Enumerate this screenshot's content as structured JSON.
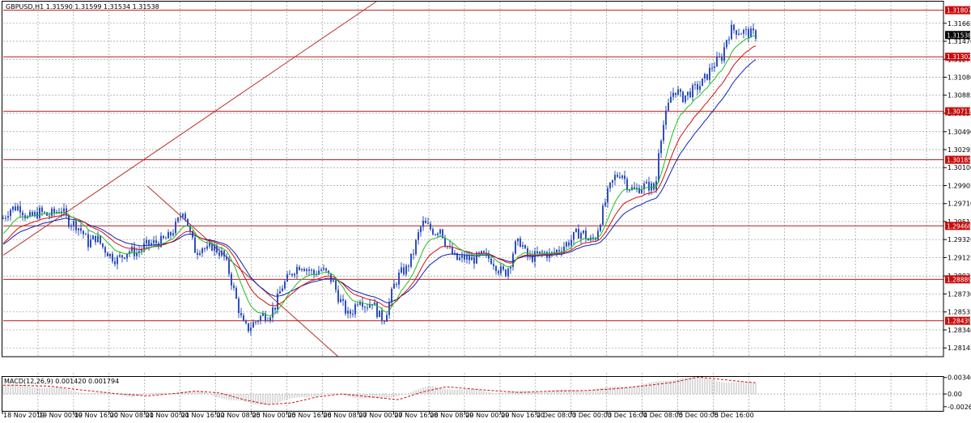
{
  "chart_data": {
    "type": "candlestick",
    "main": {
      "title": "GBPUSD,H1  1.31590 1.31599 1.31534 1.31538",
      "ylim": [
        1.2805,
        1.319
      ],
      "y_ticks": [
        "1.31665",
        "1.31470",
        "1.31275",
        "1.31080",
        "1.30885",
        "1.30690",
        "1.30490",
        "1.30295",
        "1.30100",
        "1.29905",
        "1.29710",
        "1.29515",
        "1.29320",
        "1.29125",
        "1.28925",
        "1.28730",
        "1.28535",
        "1.28340",
        "1.28145"
      ],
      "current_price": "1.31538",
      "levels": [
        {
          "value": 1.31807,
          "label": "1.31807"
        },
        {
          "value": 1.31302,
          "label": "1.31302"
        },
        {
          "value": 1.30711,
          "label": "1.30711"
        },
        {
          "value": 1.30185,
          "label": "1.30185"
        },
        {
          "value": 1.29468,
          "label": "1.29468"
        },
        {
          "value": 1.28889,
          "label": "1.28889"
        },
        {
          "value": 1.28439,
          "label": "1.28439"
        }
      ],
      "price_path": [
        [
          0,
          1.2955
        ],
        [
          8,
          1.2965
        ],
        [
          20,
          1.2968
        ],
        [
          30,
          1.2955
        ],
        [
          38,
          1.2958
        ],
        [
          45,
          1.2962
        ],
        [
          55,
          1.2958
        ],
        [
          65,
          1.2962
        ],
        [
          72,
          1.2965
        ],
        [
          80,
          1.2952
        ],
        [
          90,
          1.2948
        ],
        [
          98,
          1.294
        ],
        [
          105,
          1.2928
        ],
        [
          115,
          1.2935
        ],
        [
          122,
          1.2925
        ],
        [
          132,
          1.2915
        ],
        [
          140,
          1.291
        ],
        [
          148,
          1.2915
        ],
        [
          155,
          1.292
        ],
        [
          165,
          1.2918
        ],
        [
          175,
          1.2925
        ],
        [
          185,
          1.2928
        ],
        [
          195,
          1.293
        ],
        [
          205,
          1.2935
        ],
        [
          212,
          1.2945
        ],
        [
          218,
          1.2955
        ],
        [
          222,
          1.2965
        ],
        [
          226,
          1.2955
        ],
        [
          232,
          1.2935
        ],
        [
          238,
          1.2918
        ],
        [
          245,
          1.2925
        ],
        [
          252,
          1.292
        ],
        [
          258,
          1.2925
        ],
        [
          265,
          1.292
        ],
        [
          272,
          1.2915
        ],
        [
          278,
          1.29
        ],
        [
          284,
          1.288
        ],
        [
          290,
          1.286
        ],
        [
          296,
          1.284
        ],
        [
          302,
          1.2835
        ],
        [
          308,
          1.284
        ],
        [
          314,
          1.2845
        ],
        [
          320,
          1.285
        ],
        [
          328,
          1.285
        ],
        [
          336,
          1.286
        ],
        [
          344,
          1.288
        ],
        [
          352,
          1.289
        ],
        [
          360,
          1.29
        ],
        [
          368,
          1.2905
        ],
        [
          376,
          1.29
        ],
        [
          384,
          1.2895
        ],
        [
          392,
          1.29
        ],
        [
          400,
          1.2895
        ],
        [
          408,
          1.2885
        ],
        [
          414,
          1.287
        ],
        [
          420,
          1.286
        ],
        [
          426,
          1.285
        ],
        [
          432,
          1.2855
        ],
        [
          440,
          1.287
        ],
        [
          448,
          1.286
        ],
        [
          456,
          1.2865
        ],
        [
          464,
          1.285
        ],
        [
          470,
          1.2845
        ],
        [
          476,
          1.286
        ],
        [
          482,
          1.288
        ],
        [
          490,
          1.2895
        ],
        [
          498,
          1.29
        ],
        [
          506,
          1.2915
        ],
        [
          512,
          1.2935
        ],
        [
          518,
          1.295
        ],
        [
          526,
          1.2945
        ],
        [
          534,
          1.294
        ],
        [
          540,
          1.2945
        ],
        [
          546,
          1.293
        ],
        [
          552,
          1.292
        ],
        [
          560,
          1.291
        ],
        [
          570,
          1.2912
        ],
        [
          580,
          1.291
        ],
        [
          592,
          1.2915
        ],
        [
          604,
          1.291
        ],
        [
          612,
          1.29
        ],
        [
          620,
          1.2895
        ],
        [
          626,
          1.2905
        ],
        [
          632,
          1.2925
        ],
        [
          640,
          1.293
        ],
        [
          646,
          1.2915
        ],
        [
          652,
          1.2912
        ],
        [
          660,
          1.2915
        ],
        [
          668,
          1.2918
        ],
        [
          676,
          1.2915
        ],
        [
          684,
          1.292
        ],
        [
          692,
          1.2925
        ],
        [
          700,
          1.293
        ],
        [
          708,
          1.2938
        ],
        [
          716,
          1.294
        ],
        [
          724,
          1.293
        ],
        [
          732,
          1.2935
        ],
        [
          740,
          1.296
        ],
        [
          748,
          1.2985
        ],
        [
          756,
          1.3
        ],
        [
          764,
          1.3005
        ],
        [
          772,
          1.299
        ],
        [
          780,
          1.2985
        ],
        [
          790,
          1.299
        ],
        [
          800,
          1.299
        ],
        [
          806,
          1.2985
        ],
        [
          810,
          1.303
        ],
        [
          814,
          1.305
        ],
        [
          820,
          1.307
        ],
        [
          826,
          1.309
        ],
        [
          832,
          1.3095
        ],
        [
          838,
          1.3085
        ],
        [
          846,
          1.309
        ],
        [
          854,
          1.3095
        ],
        [
          862,
          1.31
        ],
        [
          870,
          1.311
        ],
        [
          876,
          1.312
        ],
        [
          882,
          1.3125
        ],
        [
          888,
          1.313
        ],
        [
          894,
          1.315
        ],
        [
          900,
          1.316
        ],
        [
          910,
          1.3158
        ],
        [
          920,
          1.3156
        ],
        [
          930,
          1.3154
        ]
      ]
    },
    "macd": {
      "title": "MACD(12,26,9) 0.001420 0.001794",
      "ylim": [
        -0.003,
        0.0037
      ],
      "y_ticks": [
        "0.003409",
        "0.00",
        "-0.00264"
      ],
      "path": [
        [
          0,
          0.0018
        ],
        [
          40,
          0.0016
        ],
        [
          80,
          0.0008
        ],
        [
          120,
          0.0001
        ],
        [
          160,
          -0.0004
        ],
        [
          200,
          0.0002
        ],
        [
          220,
          0.0006
        ],
        [
          250,
          0.0002
        ],
        [
          280,
          -0.0012
        ],
        [
          310,
          -0.0022
        ],
        [
          340,
          -0.0018
        ],
        [
          370,
          -0.0006
        ],
        [
          400,
          0.0
        ],
        [
          430,
          -0.0005
        ],
        [
          470,
          -0.0012
        ],
        [
          500,
          0.0004
        ],
        [
          530,
          0.0015
        ],
        [
          570,
          0.0009
        ],
        [
          620,
          0.0003
        ],
        [
          660,
          0.0006
        ],
        [
          700,
          0.0007
        ],
        [
          740,
          0.0011
        ],
        [
          780,
          0.0018
        ],
        [
          810,
          0.0024
        ],
        [
          840,
          0.0035
        ],
        [
          870,
          0.003
        ],
        [
          900,
          0.0025
        ],
        [
          930,
          0.0021
        ]
      ]
    },
    "x_labels": [
      "18 Nov 2019",
      "19 Nov 00:00",
      "19 Nov 16:00",
      "20 Nov 08:00",
      "21 Nov 00:00",
      "21 Nov 16:00",
      "22 Nov 08:00",
      "25 Nov 00:00",
      "25 Nov 16:00",
      "26 Nov 08:00",
      "27 Nov 00:00",
      "27 Nov 16:00",
      "28 Nov 08:00",
      "29 Nov 00:00",
      "29 Nov 16:00",
      "2 Dec 08:00",
      "3 Dec 00:00",
      "3 Dec 16:00",
      "4 Dec 08:00",
      "5 Dec 00:00",
      "5 Dec 16:00"
    ],
    "colors": {
      "candle": "#2d4fbd",
      "ma_fast": "#1fbf1f",
      "ma_mid": "#d01010",
      "ma_slow": "#1020b0",
      "level_line": "#c01818",
      "level_box": "#c80c0c",
      "trendline": "#b83030",
      "grid": "#9a9a9a",
      "macd_hist": "#b8b8b8",
      "macd_signal": "#d01010"
    }
  }
}
